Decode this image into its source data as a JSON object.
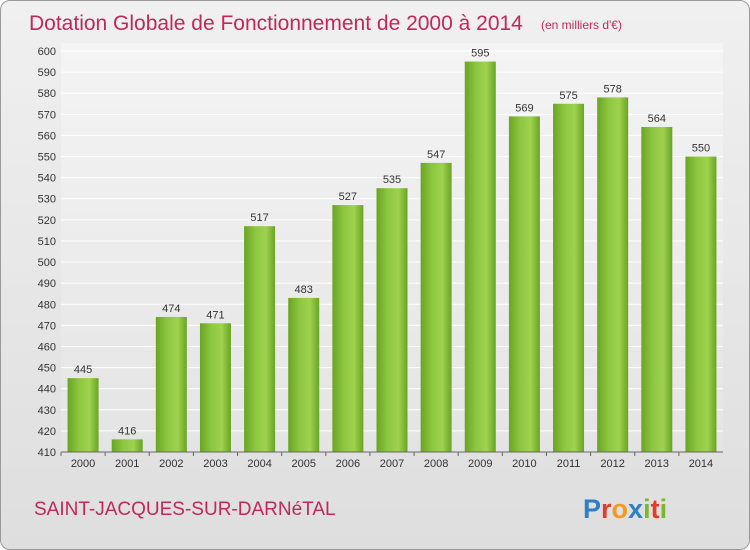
{
  "chart_data": {
    "type": "bar",
    "title": "Dotation Globale de Fonctionnement de 2000 à 2014",
    "subtitle": "(en milliers d'€)",
    "xlabel": "",
    "ylabel": "",
    "categories": [
      "2000",
      "2001",
      "2002",
      "2003",
      "2004",
      "2005",
      "2006",
      "2007",
      "2008",
      "2009",
      "2010",
      "2011",
      "2012",
      "2013",
      "2014"
    ],
    "values": [
      445,
      416,
      474,
      471,
      517,
      483,
      527,
      535,
      547,
      595,
      569,
      575,
      578,
      564,
      550
    ],
    "ylim": [
      410,
      600
    ],
    "ytick_step": 10,
    "grid": true,
    "legend": "none",
    "bar_color": "#7cb82f"
  },
  "footer": {
    "commune": "SAINT-JACQUES-SUR-DARNéTAL",
    "commune_color": "#c0285a"
  },
  "logo": {
    "text": "Proxiti",
    "letter_colors": [
      "#2f7fc4",
      "#e23c2a",
      "#f39a1c",
      "#2f7fc4",
      "#7cb82f",
      "#e23c2a",
      "#7cb82f"
    ]
  }
}
